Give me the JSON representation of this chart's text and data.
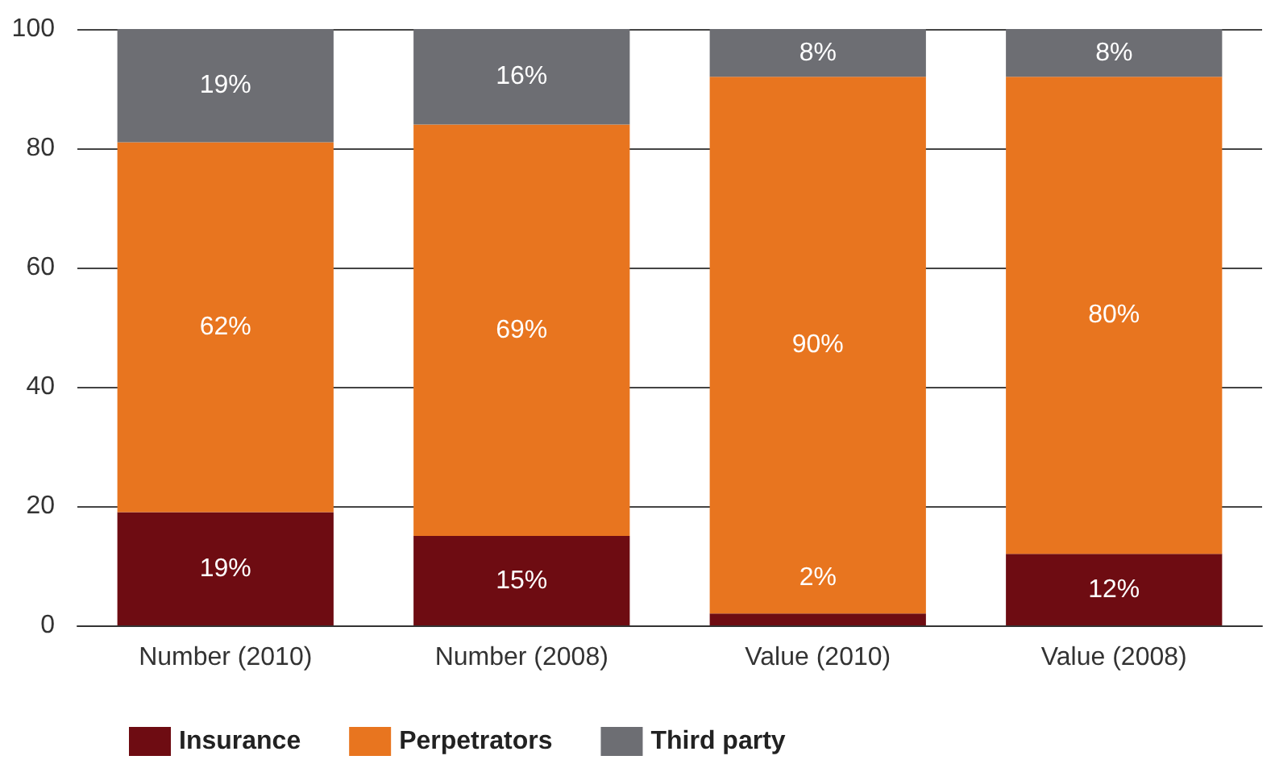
{
  "chart_data": {
    "type": "bar",
    "stacked": true,
    "categories": [
      "Number (2010)",
      "Number (2008)",
      "Value (2010)",
      "Value (2008)"
    ],
    "series": [
      {
        "name": "Insurance",
        "color": "#6e0c12",
        "values": [
          19,
          15,
          2,
          12
        ],
        "value_labels": [
          "19%",
          "15%",
          "2%",
          "12%"
        ]
      },
      {
        "name": "Perpetrators",
        "color": "#e8751f",
        "values": [
          62,
          69,
          90,
          80
        ],
        "value_labels": [
          "62%",
          "69%",
          "90%",
          "80%"
        ]
      },
      {
        "name": "Third party",
        "color": "#6d6e73",
        "values": [
          19,
          16,
          8,
          8
        ],
        "value_labels": [
          "19%",
          "16%",
          "8%",
          "8%"
        ]
      }
    ],
    "ylim": [
      0,
      100
    ],
    "yticks": [
      0,
      20,
      40,
      60,
      80,
      100
    ],
    "grid": "y",
    "legend": "bottom left"
  }
}
